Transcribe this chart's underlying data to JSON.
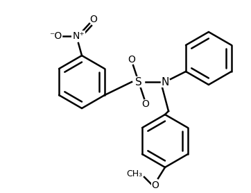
{
  "bg_color": "#ffffff",
  "line_color": "#000000",
  "line_width": 1.8,
  "figsize": [
    3.62,
    2.78
  ],
  "dpi": 100,
  "font_size": 10,
  "atoms": {
    "N_label": "N",
    "S_label": "S",
    "O_upper_label": "O",
    "O_lower_label": "O",
    "NO2_N_label": "N⁺",
    "NO2_O1_label": "⁻O",
    "NO2_O2_label": "O",
    "OCH3_label": "O",
    "OCH3_CH3_label": "CH₃"
  }
}
